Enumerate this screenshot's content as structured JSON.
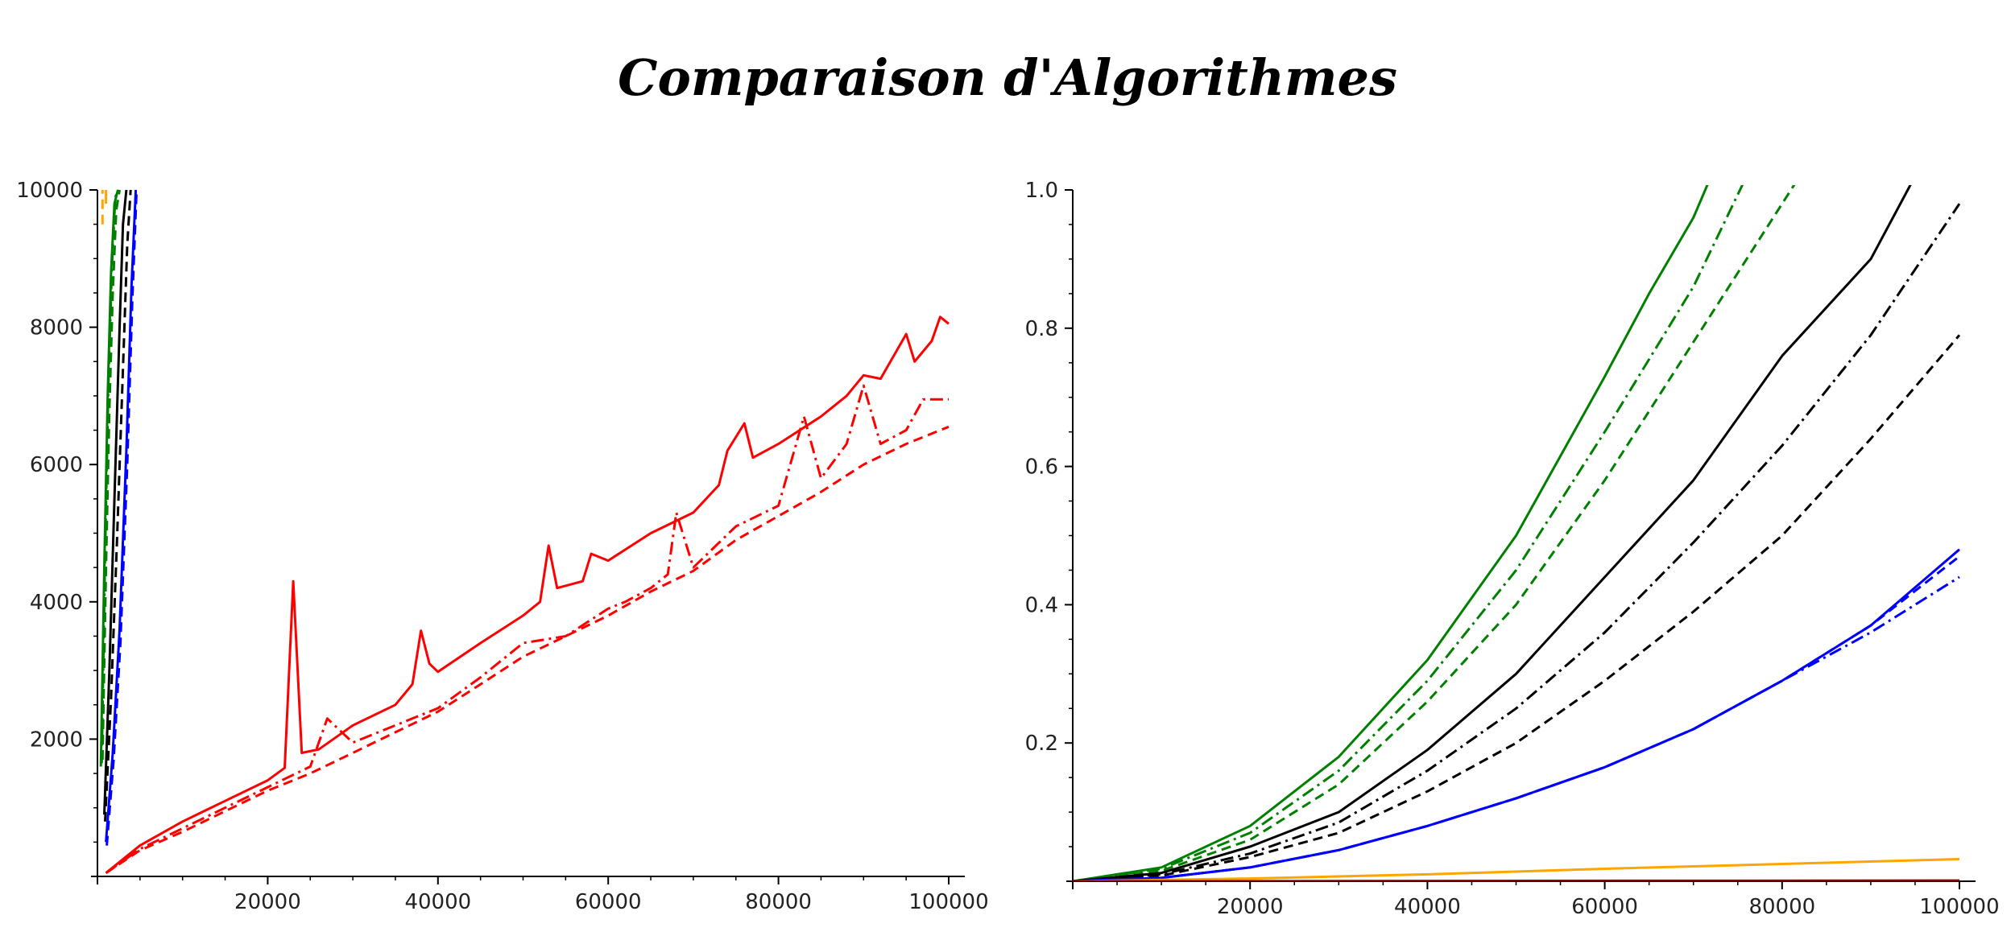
{
  "title": "Comparaison d'Algorithmes",
  "colors": {
    "red": "#ff0000",
    "green": "#008000",
    "black": "#000000",
    "blue": "#0000ff",
    "orange": "#ffa500",
    "darkred": "#8b0000"
  },
  "chart_data": [
    {
      "type": "line",
      "title": "",
      "xlabel": "",
      "ylabel": "",
      "xlim": [
        0,
        100000
      ],
      "ylim": [
        0,
        10000
      ],
      "xticks": [
        "20000",
        "40000",
        "60000",
        "80000",
        "100000"
      ],
      "yticks": [
        "2000",
        "4000",
        "6000",
        "8000",
        "10000"
      ],
      "grid": false,
      "series": [
        {
          "color": "red",
          "style": "solid",
          "x": [
            1000,
            5000,
            10000,
            15000,
            20000,
            22000,
            23000,
            24000,
            26000,
            30000,
            35000,
            37000,
            38000,
            39000,
            40000,
            45000,
            50000,
            52000,
            53000,
            54000,
            57000,
            58000,
            60000,
            65000,
            70000,
            73000,
            74000,
            76000,
            77000,
            80000,
            85000,
            88000,
            90000,
            92000,
            95000,
            96000,
            98000,
            99000,
            100000
          ],
          "y": [
            50,
            450,
            800,
            1100,
            1400,
            1580,
            4300,
            1800,
            1850,
            2200,
            2500,
            2800,
            3580,
            3100,
            2980,
            3400,
            3800,
            4000,
            4820,
            4200,
            4300,
            4700,
            4600,
            5000,
            5300,
            5700,
            6200,
            6600,
            6100,
            6300,
            6700,
            7000,
            7300,
            7250,
            7900,
            7500,
            7800,
            8150,
            8050
          ]
        },
        {
          "color": "red",
          "style": "dashdot",
          "x": [
            1000,
            5000,
            10000,
            15000,
            20000,
            25000,
            27000,
            30000,
            35000,
            40000,
            45000,
            50000,
            55000,
            60000,
            62000,
            65000,
            67000,
            68000,
            70000,
            75000,
            80000,
            83000,
            85000,
            88000,
            90000,
            92000,
            95000,
            97000,
            100000
          ],
          "y": [
            50,
            400,
            700,
            1000,
            1300,
            1600,
            2300,
            1950,
            2200,
            2450,
            2900,
            3400,
            3500,
            3900,
            4000,
            4200,
            4400,
            5300,
            4500,
            5100,
            5400,
            6700,
            5800,
            6300,
            7150,
            6300,
            6500,
            6950,
            6950
          ]
        },
        {
          "color": "red",
          "style": "dashed",
          "x": [
            1000,
            5000,
            10000,
            15000,
            20000,
            25000,
            30000,
            35000,
            40000,
            45000,
            50000,
            55000,
            60000,
            65000,
            70000,
            75000,
            80000,
            85000,
            90000,
            95000,
            100000
          ],
          "y": [
            50,
            380,
            650,
            950,
            1250,
            1500,
            1800,
            2100,
            2400,
            2800,
            3200,
            3500,
            3800,
            4150,
            4450,
            4900,
            5250,
            5600,
            6000,
            6300,
            6550
          ]
        },
        {
          "color": "green",
          "style": "solid",
          "x": [
            400,
            800,
            1200,
            1600,
            2000,
            2400
          ],
          "y": [
            1600,
            4500,
            7000,
            8800,
            9800,
            10000
          ]
        },
        {
          "color": "green",
          "style": "dashed",
          "x": [
            600,
            1000,
            1400,
            1800,
            2200,
            2600
          ],
          "y": [
            1700,
            4500,
            6800,
            8500,
            9700,
            10000
          ]
        },
        {
          "color": "green",
          "style": "dashdot",
          "x": [
            500,
            900,
            1300,
            1700,
            2100,
            2500
          ],
          "y": [
            1650,
            4700,
            7200,
            8900,
            9900,
            10000
          ]
        },
        {
          "color": "black",
          "style": "solid",
          "x": [
            800,
            1400,
            2000,
            2600,
            3000,
            3400
          ],
          "y": [
            900,
            3000,
            5500,
            8000,
            9500,
            10000
          ]
        },
        {
          "color": "black",
          "style": "dashed",
          "x": [
            900,
            1600,
            2300,
            3000,
            3500,
            3900
          ],
          "y": [
            800,
            2600,
            4900,
            7400,
            9200,
            10000
          ]
        },
        {
          "color": "blue",
          "style": "solid",
          "x": [
            1000,
            1800,
            2600,
            3400,
            4000,
            4500
          ],
          "y": [
            500,
            1800,
            3600,
            6200,
            8600,
            10000
          ]
        },
        {
          "color": "blue",
          "style": "dashed",
          "x": [
            1100,
            1900,
            2700,
            3500,
            4100,
            4600
          ],
          "y": [
            450,
            1700,
            3400,
            6000,
            8400,
            10000
          ]
        },
        {
          "color": "orange",
          "style": "dashed",
          "x": [
            600,
            600
          ],
          "y": [
            9500,
            10000
          ]
        },
        {
          "color": "orange",
          "style": "solid",
          "x": [
            1000,
            1000
          ],
          "y": [
            9800,
            10000
          ]
        }
      ]
    },
    {
      "type": "line",
      "title": "",
      "xlabel": "",
      "ylabel": "",
      "xlim": [
        0,
        100000
      ],
      "ylim": [
        0,
        1.0
      ],
      "xticks": [
        "20000",
        "40000",
        "60000",
        "80000",
        "100000"
      ],
      "yticks": [
        "0.2",
        "0.4",
        "0.6",
        "0.8",
        "1.0"
      ],
      "grid": false,
      "series": [
        {
          "color": "green",
          "style": "solid",
          "x": [
            0,
            10000,
            20000,
            30000,
            40000,
            50000,
            60000,
            65000,
            70000,
            72000
          ],
          "y": [
            0,
            0.02,
            0.08,
            0.18,
            0.32,
            0.5,
            0.73,
            0.85,
            0.96,
            1.02
          ]
        },
        {
          "color": "green",
          "style": "dashdot",
          "x": [
            0,
            10000,
            20000,
            30000,
            40000,
            50000,
            60000,
            70000,
            76000
          ],
          "y": [
            0,
            0.018,
            0.07,
            0.16,
            0.29,
            0.45,
            0.65,
            0.86,
            1.02
          ]
        },
        {
          "color": "green",
          "style": "dashed",
          "x": [
            0,
            10000,
            20000,
            30000,
            40000,
            50000,
            60000,
            70000,
            80000,
            82000
          ],
          "y": [
            0,
            0.015,
            0.06,
            0.14,
            0.26,
            0.4,
            0.58,
            0.78,
            0.98,
            1.02
          ]
        },
        {
          "color": "black",
          "style": "solid",
          "x": [
            0,
            10000,
            20000,
            30000,
            40000,
            50000,
            60000,
            70000,
            80000,
            90000,
            95000
          ],
          "y": [
            0,
            0.012,
            0.05,
            0.1,
            0.19,
            0.3,
            0.44,
            0.58,
            0.76,
            0.9,
            1.02
          ]
        },
        {
          "color": "black",
          "style": "dashdot",
          "x": [
            0,
            10000,
            20000,
            30000,
            40000,
            50000,
            60000,
            70000,
            80000,
            90000,
            100000
          ],
          "y": [
            0,
            0.01,
            0.04,
            0.085,
            0.16,
            0.25,
            0.36,
            0.49,
            0.63,
            0.79,
            0.98
          ]
        },
        {
          "color": "black",
          "style": "dashed",
          "x": [
            0,
            10000,
            20000,
            30000,
            40000,
            50000,
            60000,
            70000,
            80000,
            90000,
            100000
          ],
          "y": [
            0,
            0.008,
            0.035,
            0.07,
            0.13,
            0.2,
            0.29,
            0.39,
            0.5,
            0.64,
            0.79
          ]
        },
        {
          "color": "blue",
          "style": "solid",
          "x": [
            0,
            10000,
            20000,
            30000,
            40000,
            50000,
            60000,
            70000,
            80000,
            90000,
            100000
          ],
          "y": [
            0,
            0.005,
            0.02,
            0.045,
            0.08,
            0.12,
            0.165,
            0.22,
            0.29,
            0.37,
            0.48
          ]
        },
        {
          "color": "blue",
          "style": "dashed",
          "x": [
            0,
            10000,
            20000,
            30000,
            40000,
            50000,
            60000,
            70000,
            80000,
            90000,
            100000
          ],
          "y": [
            0,
            0.005,
            0.02,
            0.045,
            0.08,
            0.12,
            0.165,
            0.22,
            0.29,
            0.37,
            0.47
          ]
        },
        {
          "color": "blue",
          "style": "dashdot",
          "x": [
            0,
            10000,
            20000,
            30000,
            40000,
            50000,
            60000,
            70000,
            80000,
            90000,
            100000
          ],
          "y": [
            0,
            0.005,
            0.02,
            0.045,
            0.08,
            0.12,
            0.165,
            0.22,
            0.29,
            0.36,
            0.44
          ]
        },
        {
          "color": "orange",
          "style": "solid",
          "x": [
            0,
            20000,
            40000,
            60000,
            80000,
            100000
          ],
          "y": [
            0,
            0.004,
            0.01,
            0.018,
            0.025,
            0.032
          ]
        },
        {
          "color": "darkred",
          "style": "solid",
          "x": [
            0,
            100000
          ],
          "y": [
            0,
            0.001
          ]
        }
      ]
    }
  ]
}
